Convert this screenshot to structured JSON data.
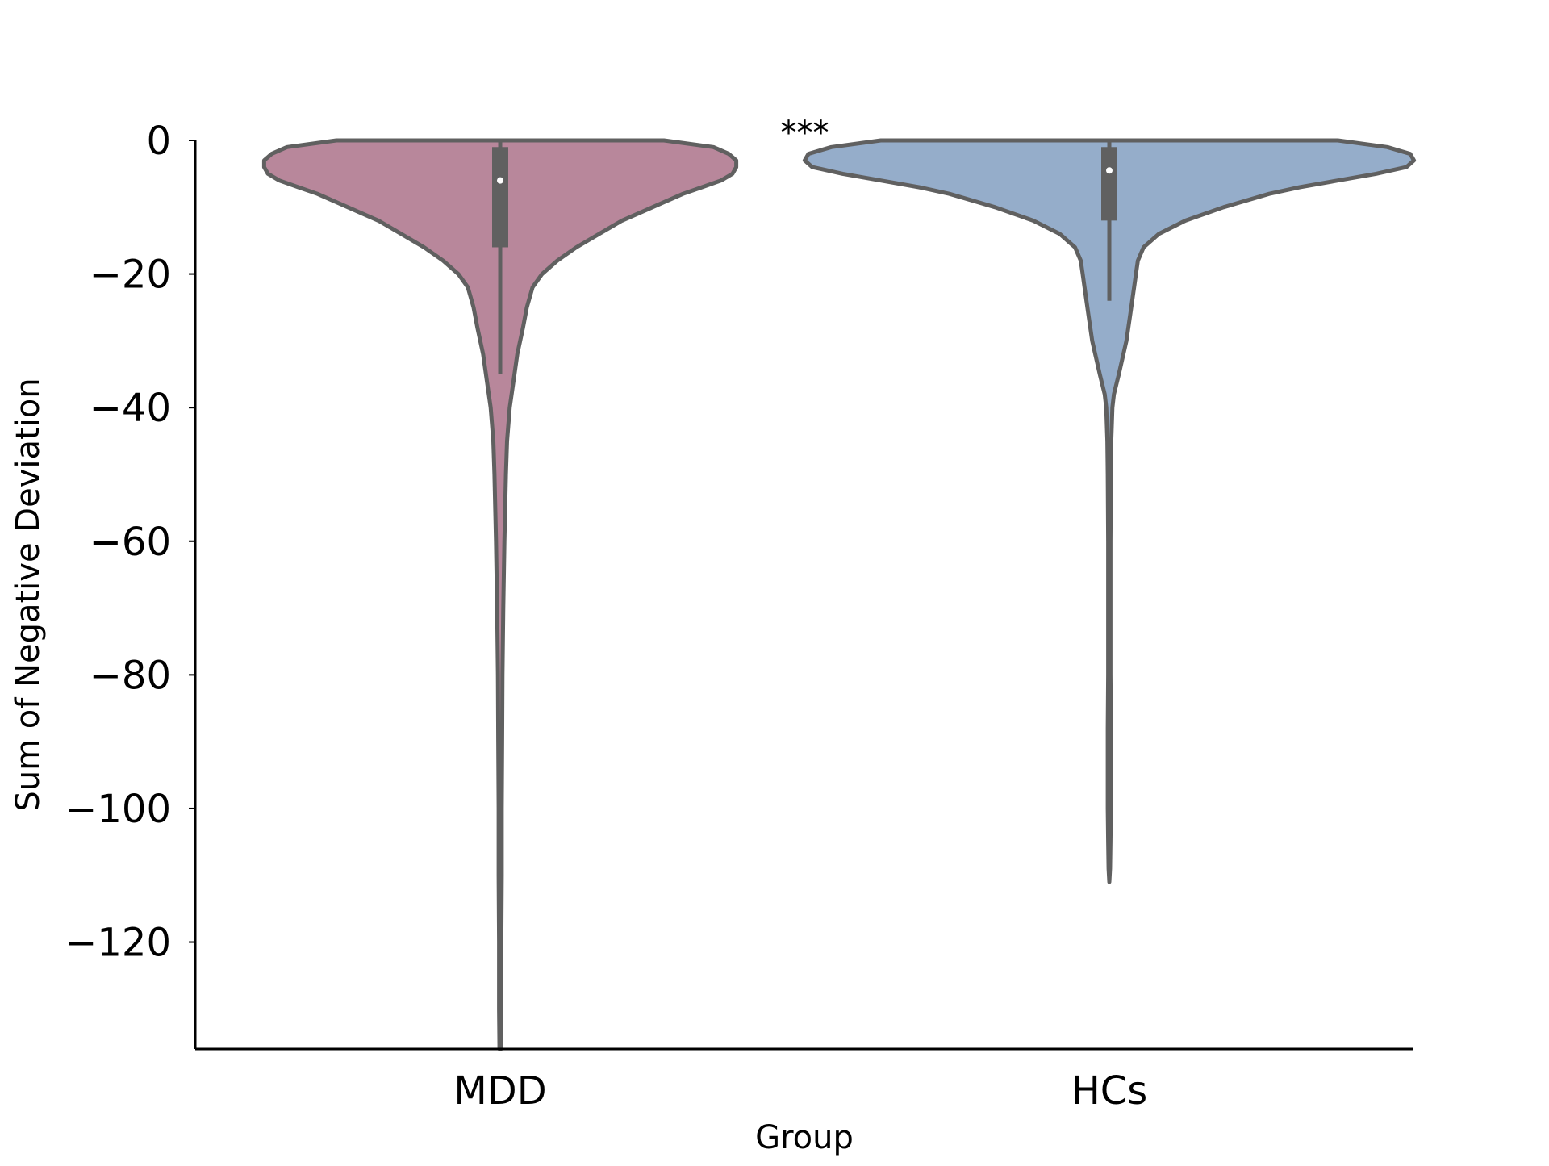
{
  "chart_data": {
    "type": "violin",
    "xlabel": "Group",
    "ylabel": "Sum of Negative Deviation",
    "ylim": [
      -136,
      0
    ],
    "yticks": [
      0,
      -20,
      -40,
      -60,
      -80,
      -100,
      -120
    ],
    "ytick_labels": [
      "0",
      "−20",
      "−40",
      "−60",
      "−80",
      "−100",
      "−120"
    ],
    "categories": [
      "MDD",
      "HCs"
    ],
    "annotation": "***",
    "grid": false,
    "series": [
      {
        "category": "MDD",
        "color": "#b8879b",
        "median": -6,
        "q1": -16,
        "q3": -1,
        "whisker_low": -35,
        "whisker_high": 0,
        "density": [
          [
            0,
            0.43
          ],
          [
            -1,
            0.56
          ],
          [
            -2,
            0.6
          ],
          [
            -3,
            0.62
          ],
          [
            -4,
            0.62
          ],
          [
            -5,
            0.61
          ],
          [
            -6,
            0.58
          ],
          [
            -7,
            0.53
          ],
          [
            -8,
            0.48
          ],
          [
            -10,
            0.4
          ],
          [
            -12,
            0.32
          ],
          [
            -14,
            0.26
          ],
          [
            -16,
            0.2
          ],
          [
            -18,
            0.15
          ],
          [
            -20,
            0.11
          ],
          [
            -22,
            0.085
          ],
          [
            -25,
            0.07
          ],
          [
            -28,
            0.06
          ],
          [
            -32,
            0.045
          ],
          [
            -36,
            0.035
          ],
          [
            -40,
            0.025
          ],
          [
            -45,
            0.018
          ],
          [
            -50,
            0.015
          ],
          [
            -60,
            0.011
          ],
          [
            -70,
            0.008
          ],
          [
            -80,
            0.006
          ],
          [
            -90,
            0.005
          ],
          [
            -100,
            0.004
          ],
          [
            -110,
            0.004
          ],
          [
            -120,
            0.003
          ],
          [
            -130,
            0.003
          ],
          [
            -136,
            0.002
          ]
        ]
      },
      {
        "category": "HCs",
        "color": "#95adca",
        "median": -4.5,
        "q1": -12,
        "q3": -1,
        "whisker_low": -24,
        "whisker_high": 0,
        "density": [
          [
            0,
            0.6
          ],
          [
            -1,
            0.73
          ],
          [
            -2,
            0.79
          ],
          [
            -3,
            0.8
          ],
          [
            -4,
            0.78
          ],
          [
            -5,
            0.7
          ],
          [
            -6,
            0.6
          ],
          [
            -7,
            0.5
          ],
          [
            -8,
            0.42
          ],
          [
            -10,
            0.3
          ],
          [
            -12,
            0.2
          ],
          [
            -14,
            0.13
          ],
          [
            -16,
            0.09
          ],
          [
            -18,
            0.075
          ],
          [
            -20,
            0.07
          ],
          [
            -22,
            0.065
          ],
          [
            -26,
            0.055
          ],
          [
            -30,
            0.045
          ],
          [
            -35,
            0.025
          ],
          [
            -38,
            0.012
          ],
          [
            -40,
            0.008
          ],
          [
            -45,
            0.005
          ],
          [
            -50,
            0.004
          ],
          [
            -60,
            0.003
          ],
          [
            -70,
            0.003
          ],
          [
            -80,
            0.003
          ],
          [
            -88,
            0.004
          ],
          [
            -92,
            0.004
          ],
          [
            -96,
            0.004
          ],
          [
            -100,
            0.004
          ],
          [
            -105,
            0.003
          ],
          [
            -109,
            0.002
          ],
          [
            -111,
            0.0
          ]
        ]
      }
    ]
  }
}
